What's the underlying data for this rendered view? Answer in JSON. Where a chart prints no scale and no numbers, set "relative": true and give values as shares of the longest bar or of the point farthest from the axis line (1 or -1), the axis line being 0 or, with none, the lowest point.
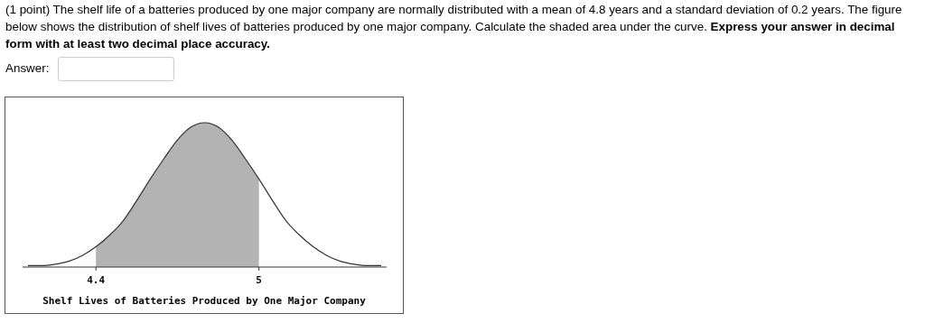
{
  "chart_data": {
    "type": "line",
    "title": "(1 point) The shelf life of a batteries produced by one major company are normally distributed with a mean of 4.8 years and a standard deviation of 0.2 years. The figure below shows the distribution of shelf lives of batteries produced by one major company. Calculate the shaded area under the curve.",
    "annotations": [
      "Express your answer in decimal form with at least two decimal place accuracy.",
      "Answer:"
    ],
    "xlabel": "Shelf Lives of Batteries Produced by One Major Company",
    "relative": true,
    "xlim": [
      4.13,
      5.47
    ],
    "xticks": [
      4.4,
      5
    ],
    "series": [
      {
        "type": "area",
        "color": "#b3b3b3",
        "x": [
          4.4,
          4.45,
          4.5,
          4.55,
          4.6,
          4.65,
          4.7,
          4.75,
          4.8,
          4.85,
          4.9,
          4.95,
          5.0
        ],
        "values": [
          0.14,
          0.22,
          0.32,
          0.46,
          0.61,
          0.75,
          0.88,
          0.97,
          1,
          0.97,
          0.88,
          0.75,
          0.61
        ]
      },
      {
        "color": "#333333",
        "x": [
          4.15,
          4.2,
          4.25,
          4.3,
          4.35,
          4.4,
          4.45,
          4.5,
          4.55,
          4.6,
          4.65,
          4.7,
          4.75,
          4.8,
          4.85,
          4.9,
          4.95,
          5.0,
          5.05,
          5.1,
          5.15,
          5.2,
          5.25,
          5.3,
          5.35,
          5.4,
          5.45
        ],
        "values": [
          0.01,
          0.01,
          0.02,
          0.04,
          0.08,
          0.14,
          0.22,
          0.32,
          0.46,
          0.61,
          0.75,
          0.88,
          0.97,
          1,
          0.97,
          0.88,
          0.75,
          0.61,
          0.46,
          0.32,
          0.22,
          0.14,
          0.08,
          0.04,
          0.02,
          0.01,
          0.01
        ]
      }
    ]
  }
}
